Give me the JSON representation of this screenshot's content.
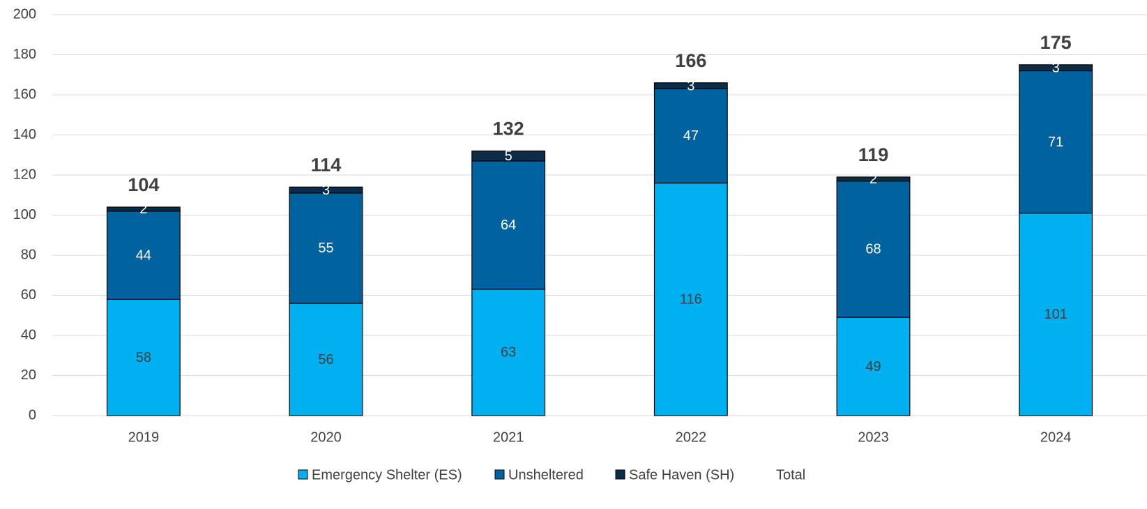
{
  "chart_data": {
    "type": "bar",
    "stacked": true,
    "categories": [
      "2019",
      "2020",
      "2021",
      "2022",
      "2023",
      "2024"
    ],
    "series": [
      {
        "name": "Emergency Shelter (ES)",
        "color": "#00b0f0",
        "values": [
          58,
          56,
          63,
          116,
          49,
          101
        ]
      },
      {
        "name": "Unsheltered",
        "color": "#00629e",
        "values": [
          44,
          55,
          64,
          47,
          68,
          71
        ]
      },
      {
        "name": "Safe Haven (SH)",
        "color": "#0c2d48",
        "values": [
          2,
          3,
          5,
          3,
          2,
          3
        ]
      },
      {
        "name": "Total",
        "values": [
          104,
          114,
          132,
          166,
          119,
          175
        ]
      }
    ],
    "ylim": [
      0,
      200
    ],
    "yticks": [
      0,
      20,
      40,
      60,
      80,
      100,
      120,
      140,
      160,
      180,
      200
    ],
    "grid": true,
    "legend": "bottom"
  }
}
